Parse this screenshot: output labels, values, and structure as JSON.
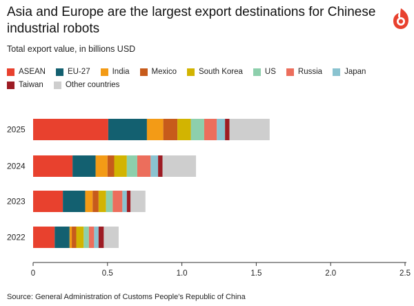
{
  "title": "Asia and Europe are the largest export destinations for Chinese industrial robots",
  "subtitle": "Total export value, in billions USD",
  "source": "Source: General Administration of Customs People's Republic of China",
  "chart_data": {
    "type": "bar",
    "orientation": "horizontal",
    "stacked": true,
    "categories": [
      "2025",
      "2024",
      "2023",
      "2022"
    ],
    "series": [
      {
        "name": "ASEAN",
        "color": "#e8412e",
        "values": [
          0.505,
          0.265,
          0.2,
          0.145
        ]
      },
      {
        "name": "EU-27",
        "color": "#136070",
        "values": [
          0.26,
          0.155,
          0.15,
          0.1
        ]
      },
      {
        "name": "India",
        "color": "#f39b16",
        "values": [
          0.11,
          0.08,
          0.05,
          0.015
        ]
      },
      {
        "name": "Mexico",
        "color": "#c75b1b",
        "values": [
          0.095,
          0.045,
          0.04,
          0.03
        ]
      },
      {
        "name": "South Korea",
        "color": "#d2b401",
        "values": [
          0.09,
          0.085,
          0.05,
          0.05
        ]
      },
      {
        "name": "US",
        "color": "#8dcfac",
        "values": [
          0.09,
          0.07,
          0.045,
          0.035
        ]
      },
      {
        "name": "Russia",
        "color": "#ec6e5c",
        "values": [
          0.085,
          0.09,
          0.065,
          0.035
        ]
      },
      {
        "name": "Japan",
        "color": "#8ac3d0",
        "values": [
          0.055,
          0.05,
          0.03,
          0.03
        ]
      },
      {
        "name": "Taiwan",
        "color": "#9d1c24",
        "values": [
          0.03,
          0.03,
          0.025,
          0.035
        ]
      },
      {
        "name": "Other countries",
        "color": "#cecece",
        "values": [
          0.27,
          0.225,
          0.1,
          0.1
        ]
      }
    ],
    "xlim": [
      0,
      2.5
    ],
    "xticks": [
      0,
      0.5,
      1.0,
      1.5,
      2.0,
      2.5
    ],
    "xtick_labels": [
      "0",
      "0.5",
      "1.0",
      "1.5",
      "2.0",
      "2.5"
    ],
    "grid": false,
    "legend_position": "top"
  }
}
